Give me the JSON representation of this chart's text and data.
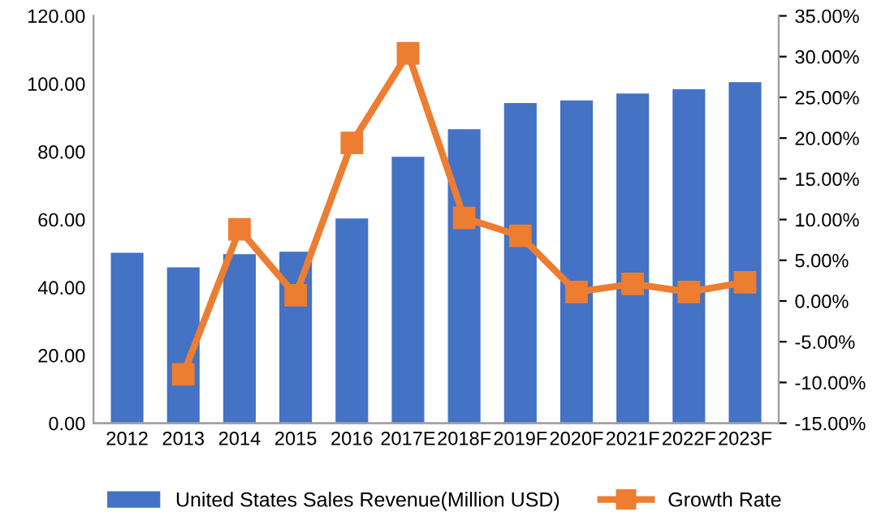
{
  "chart_data": {
    "type": "bar",
    "categories": [
      "2012",
      "2013",
      "2014",
      "2015",
      "2016",
      "2017E",
      "2018F",
      "2019F",
      "2020F",
      "2021F",
      "2022F",
      "2023F"
    ],
    "series": [
      {
        "name": "United States Sales Revenue(Million USD)",
        "color": "#4472c4",
        "values": [
          50.2,
          45.9,
          49.8,
          50.5,
          60.3,
          78.5,
          86.6,
          94.3,
          95.1,
          97.1,
          98.4,
          100.5
        ]
      },
      {
        "name": "Growth Rate",
        "type": "line",
        "axis": "y2",
        "color": "#ed7d31",
        "marker": "square",
        "values": [
          null,
          -9.0,
          8.8,
          0.7,
          19.4,
          30.4,
          10.2,
          8.0,
          1.1,
          2.1,
          1.1,
          2.3
        ]
      }
    ],
    "ylim": [
      0,
      120
    ],
    "yticks": [
      {
        "value": 0,
        "label": "0.00"
      },
      {
        "value": 20,
        "label": "20.00"
      },
      {
        "value": 40,
        "label": "40.00"
      },
      {
        "value": 60,
        "label": "60.00"
      },
      {
        "value": 80,
        "label": "80.00"
      },
      {
        "value": 100,
        "label": "100.00"
      },
      {
        "value": 120,
        "label": "120.00"
      }
    ],
    "y2lim": [
      -15,
      35
    ],
    "y2ticks": [
      {
        "value": -15,
        "label": "-15.00%"
      },
      {
        "value": -10,
        "label": "-10.00%"
      },
      {
        "value": -5,
        "label": "-5.00%"
      },
      {
        "value": 0,
        "label": "0.00%"
      },
      {
        "value": 5,
        "label": "5.00%"
      },
      {
        "value": 10,
        "label": "10.00%"
      },
      {
        "value": 15,
        "label": "15.00%"
      },
      {
        "value": 20,
        "label": "20.00%"
      },
      {
        "value": 25,
        "label": "25.00%"
      },
      {
        "value": 30,
        "label": "30.00%"
      },
      {
        "value": 35,
        "label": "35.00%"
      }
    ],
    "grid": false,
    "legend": "bottom"
  }
}
